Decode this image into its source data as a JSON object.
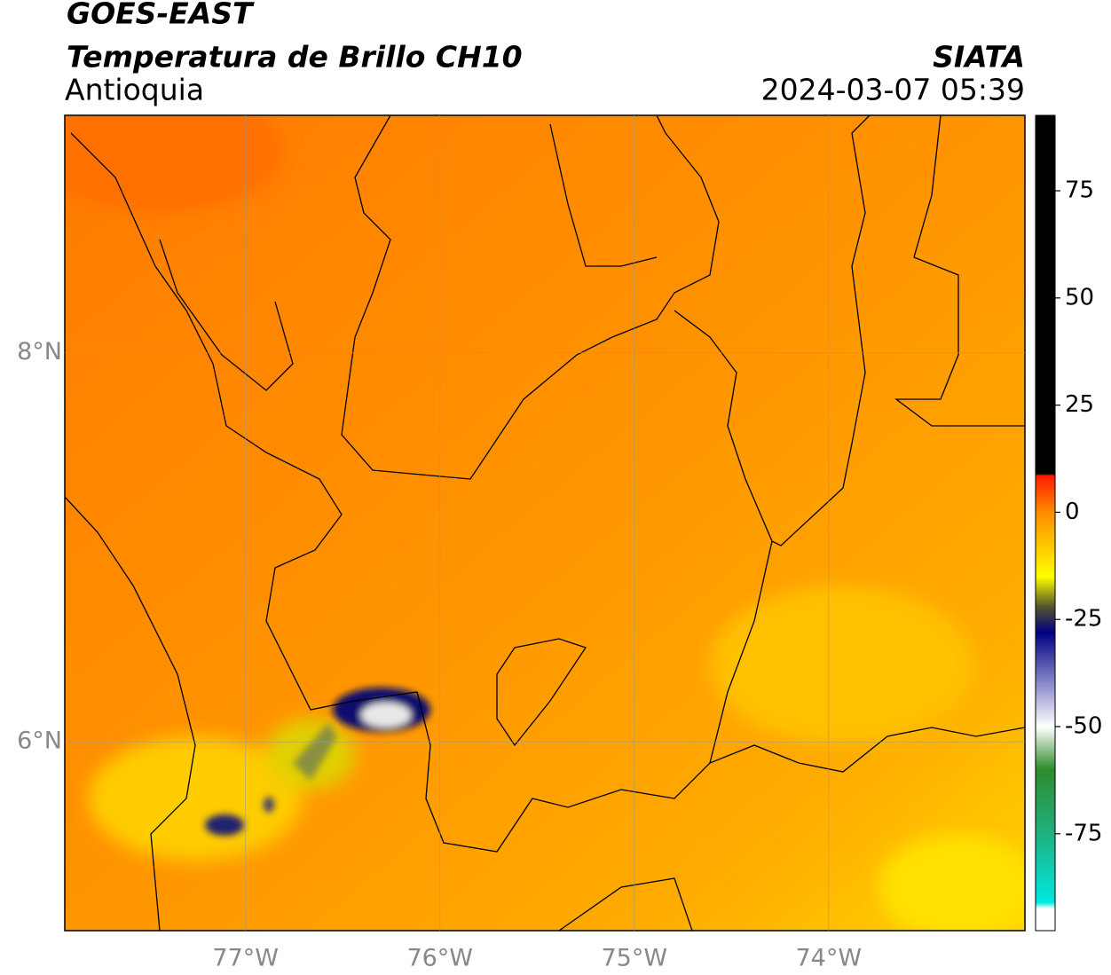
{
  "header": {
    "title": "GOES-EAST",
    "subtitle": "Temperatura de Brillo CH10",
    "region": "Antioquia",
    "source": "SIATA",
    "datetime": "2024-03-07 05:39"
  },
  "map": {
    "lonlim": [
      -77.93,
      -72.99
    ],
    "latlim": [
      5.03,
      9.22
    ],
    "lon_ticks": [
      {
        "value": -77,
        "label": "77°W"
      },
      {
        "value": -76,
        "label": "76°W"
      },
      {
        "value": -75,
        "label": "75°W"
      },
      {
        "value": -74,
        "label": "74°W"
      }
    ],
    "lat_ticks": [
      {
        "value": 8,
        "label": "8°N"
      },
      {
        "value": 6,
        "label": "6°N"
      }
    ],
    "grid": true
  },
  "colorbar": {
    "lim": [
      -97.6,
      92.6
    ],
    "ticks": [
      75,
      50,
      25,
      0,
      -25,
      -50,
      -75
    ],
    "colormap": [
      {
        "value": 92.6,
        "color": "#000000"
      },
      {
        "value": 9,
        "color": "#000000"
      },
      {
        "value": 8.5,
        "color": "#ff1a00"
      },
      {
        "value": 0,
        "color": "#ff8c00"
      },
      {
        "value": -15,
        "color": "#ffff00"
      },
      {
        "value": -22,
        "color": "#55552e"
      },
      {
        "value": -28,
        "color": "#000080"
      },
      {
        "value": -40,
        "color": "#8a8acc"
      },
      {
        "value": -50,
        "color": "#ffffff"
      },
      {
        "value": -60,
        "color": "#2e8b2e"
      },
      {
        "value": -75,
        "color": "#20b080"
      },
      {
        "value": -91,
        "color": "#00e8e0"
      },
      {
        "value": -92.5,
        "color": "#ffffff"
      },
      {
        "value": -97.6,
        "color": "#ffffff"
      }
    ]
  }
}
